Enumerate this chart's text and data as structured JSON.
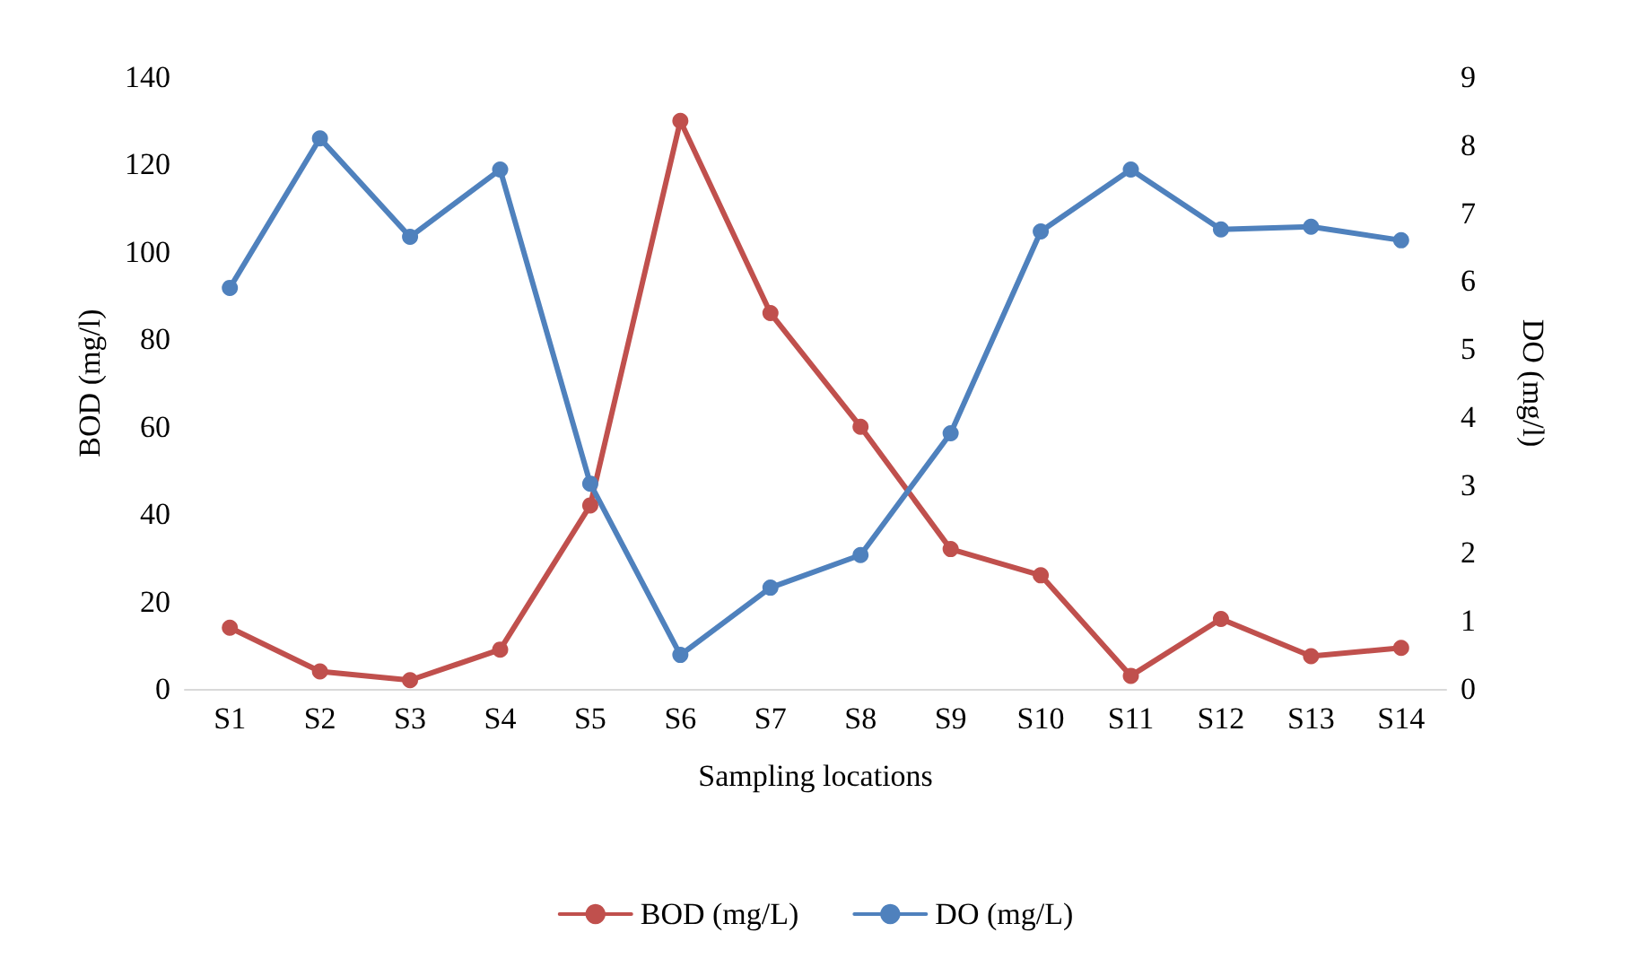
{
  "chart_data": {
    "type": "line",
    "xlabel": "Sampling locations",
    "ylabel": "BOD (mg/l)",
    "y2label": "DO (mg/l)",
    "categories": [
      "S1",
      "S2",
      "S3",
      "S4",
      "S5",
      "S6",
      "S7",
      "S8",
      "S9",
      "S10",
      "S11",
      "S12",
      "S13",
      "S14"
    ],
    "series": [
      {
        "name": "BOD (mg/L)",
        "color": "#c0504d",
        "values": [
          14,
          4,
          2,
          9,
          42,
          130,
          86,
          60,
          32,
          26,
          3,
          16,
          7.5,
          9.4
        ]
      },
      {
        "name": "DO (mg/L)",
        "color": "#4f81bd",
        "axis": "y2",
        "values": [
          5.9,
          8.1,
          6.65,
          7.64,
          3.02,
          0.5,
          1.49,
          1.97,
          3.76,
          6.73,
          7.64,
          6.76,
          6.8,
          6.6
        ]
      }
    ],
    "ylim": [
      0,
      140
    ],
    "yticks": [
      0,
      20,
      40,
      60,
      80,
      100,
      120,
      140
    ],
    "y2lim": [
      0,
      9
    ],
    "y2ticks": [
      0,
      1,
      2,
      3,
      4,
      5,
      6,
      7,
      8,
      9
    ],
    "grid": false,
    "legend": "bottom",
    "marker": "circle",
    "line_style": "solid"
  }
}
